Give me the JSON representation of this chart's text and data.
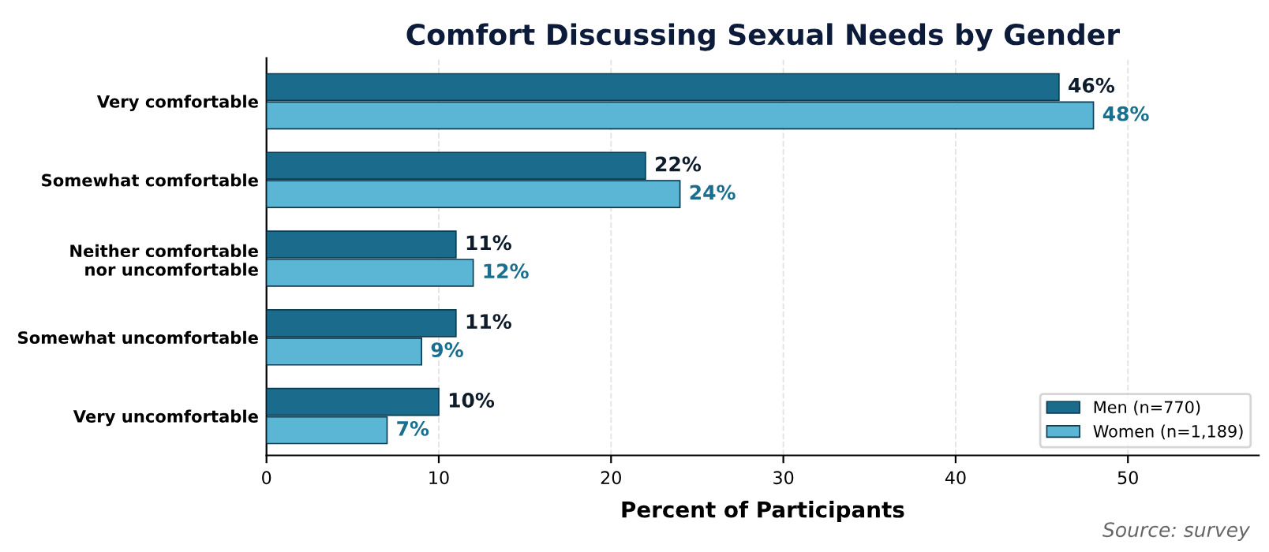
{
  "chart_data": {
    "type": "bar",
    "orientation": "horizontal",
    "title": "Comfort Discussing Sexual Needs by Gender",
    "xlabel": "Percent of Participants",
    "categories": [
      "Very comfortable",
      "Somewhat comfortable",
      "Neither comfortable\nnor uncomfortable",
      "Somewhat uncomfortable",
      "Very uncomfortable"
    ],
    "series": [
      {
        "name": "Men (n=770)",
        "color": "#1b6b8c",
        "values": [
          46,
          22,
          11,
          11,
          10
        ],
        "value_labels": [
          "46%",
          "22%",
          "11%",
          "11%",
          "10%"
        ]
      },
      {
        "name": "Women (n=1,189)",
        "color": "#5bb6d6",
        "values": [
          48,
          24,
          12,
          9,
          7
        ],
        "value_labels": [
          "48%",
          "24%",
          "12%",
          "9%",
          "7%"
        ]
      }
    ],
    "xlim": [
      0,
      57.6
    ],
    "xticks": [
      0,
      10,
      20,
      30,
      40,
      50
    ],
    "grid": "x",
    "legend": "bottom right",
    "annotations": [
      "Source: survey"
    ]
  }
}
